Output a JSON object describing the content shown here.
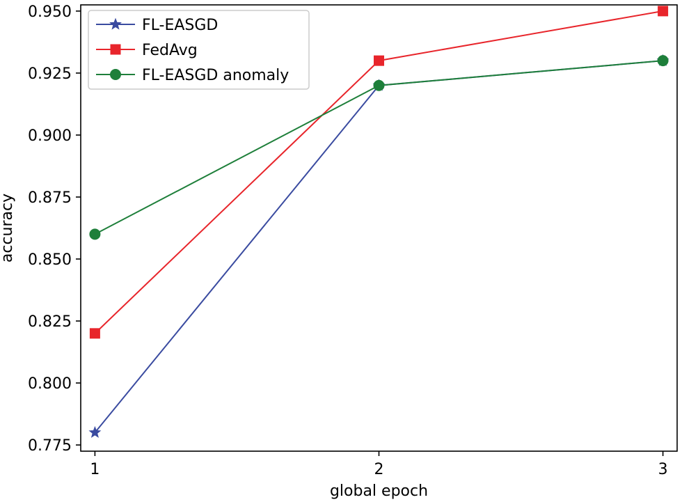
{
  "chart_data": {
    "type": "line",
    "title": "",
    "xlabel": "global epoch",
    "ylabel": "accuracy",
    "x": [
      1,
      2,
      3
    ],
    "x_ticks": [
      "1",
      "2",
      "3"
    ],
    "xlim": [
      0.95,
      3.05
    ],
    "ylim": [
      0.7725,
      0.9525
    ],
    "y_ticks": [
      0.775,
      0.8,
      0.825,
      0.85,
      0.875,
      0.9,
      0.925,
      0.95
    ],
    "y_tick_labels": [
      "0.775",
      "0.800",
      "0.825",
      "0.850",
      "0.875",
      "0.900",
      "0.925",
      "0.950"
    ],
    "grid": false,
    "legend_position": "top-left",
    "series": [
      {
        "name": "FL-EASGD",
        "values": [
          0.78,
          0.92,
          0.93
        ],
        "color": "#3a4ba0",
        "marker": "star"
      },
      {
        "name": "FedAvg",
        "values": [
          0.82,
          0.93,
          0.95
        ],
        "color": "#e8252b",
        "marker": "square"
      },
      {
        "name": "FL-EASGD anomaly",
        "values": [
          0.86,
          0.92,
          0.93
        ],
        "color": "#1e7f3a",
        "marker": "circle"
      }
    ]
  }
}
